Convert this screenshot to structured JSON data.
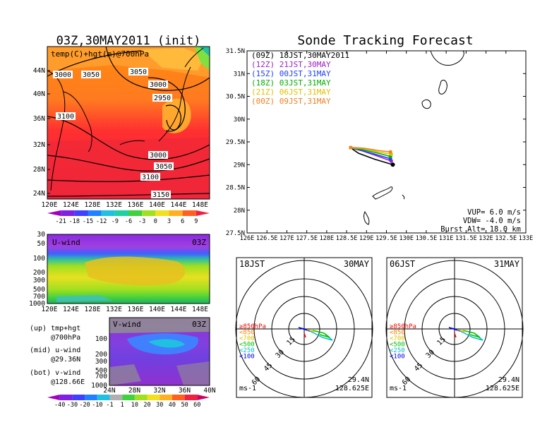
{
  "left": {
    "title": "03Z,30MAY2011 (init)",
    "map_label": "temp(C)+hgt(m)@700hPa",
    "map_lat_ticks": [
      "44N",
      "40N",
      "36N",
      "32N",
      "28N",
      "24N"
    ],
    "map_lon_ticks": [
      "120E",
      "124E",
      "128E",
      "132E",
      "136E",
      "140E",
      "144E",
      "148E"
    ],
    "contour_labels": [
      "3000",
      "3050",
      "3050",
      "3000",
      "2950",
      "3100",
      "3000",
      "3050",
      "3100",
      "3150"
    ],
    "temp_colorbar": [
      "-21",
      "-18",
      "-15",
      "-12",
      "-9",
      "-6",
      "-3",
      "0",
      "3",
      "6",
      "9"
    ],
    "u_label": "U-wind",
    "u_time": "03Z",
    "u_levels": [
      "30",
      "50",
      "100",
      "200",
      "300",
      "500",
      "700",
      "1000"
    ],
    "u_lon_ticks": [
      "120E",
      "124E",
      "128E",
      "132E",
      "136E",
      "140E",
      "144E",
      "148E"
    ],
    "v_label": "V-wind",
    "v_time": "03Z",
    "v_levels": [
      "100",
      "200",
      "300",
      "500",
      "700",
      "1000"
    ],
    "v_lat_ticks": [
      "24N",
      "28N",
      "32N",
      "36N",
      "40N"
    ],
    "notes": [
      "(up) tmp+hgt",
      "@700hPa",
      "(mid) u-wind",
      "@29.36N",
      "(bot) v-wind",
      "@128.66E"
    ],
    "wind_colorbar": [
      "-40",
      "-30",
      "-20",
      "-10",
      "-1",
      "1",
      "10",
      "20",
      "30",
      "40",
      "50",
      "60"
    ]
  },
  "track": {
    "title": "Sonde Tracking Forecast",
    "lat_ticks": [
      "31.5N",
      "31N",
      "30.5N",
      "30N",
      "29.5N",
      "29N",
      "28.5N",
      "28N",
      "27.5N"
    ],
    "lon_ticks": [
      "126E",
      "126.5E",
      "127E",
      "127.5E",
      "128E",
      "128.5E",
      "129E",
      "129.5E",
      "130E",
      "130.5E",
      "131E",
      "131.5E",
      "132E",
      "132.5E",
      "133E"
    ],
    "legend": [
      {
        "text": "(09Z)  18JST,30MAY2011",
        "color": "#000000"
      },
      {
        "text": "(12Z)  21JST,30MAY",
        "color": "#a020c0"
      },
      {
        "text": "(15Z)  00JST,31MAY",
        "color": "#2040ff"
      },
      {
        "text": "(18Z)  03JST,31MAY",
        "color": "#00b000"
      },
      {
        "text": "(21Z)  06JST,31MAY",
        "color": "#e0c000"
      },
      {
        "text": "(00Z)  09JST,31MAY",
        "color": "#f08020"
      }
    ],
    "params": [
      "VUP=  6.0  m/s",
      "VDW= -4.0  m/s",
      "Burst Alt=  18.0  km"
    ]
  },
  "hodo1": {
    "left": "18JST",
    "right": "30MAY",
    "lat": "29.4N",
    "lon": "128.625E",
    "unit": "ms-1"
  },
  "hodo2": {
    "left": "06JST",
    "right": "31MAY",
    "lat": "29.4N",
    "lon": "128.625E",
    "unit": "ms-1"
  },
  "hodo_rings": [
    "15",
    "30",
    "45",
    "60"
  ],
  "hodo_levels": [
    {
      "text": "≥850hPa",
      "color": "#ff0000"
    },
    {
      "text": "<850",
      "color": "#ff8000"
    },
    {
      "text": "<700",
      "color": "#e0c000"
    },
    {
      "text": "<500",
      "color": "#00c000"
    },
    {
      "text": "<250",
      "color": "#00c0c0"
    },
    {
      "text": "<100",
      "color": "#0000ff"
    }
  ],
  "chart_data": {
    "type": "line",
    "title": "Sonde Tracking Forecast",
    "xlabel": "",
    "ylabel": "",
    "xlim": [
      126,
      133
    ],
    "ylim": [
      27.5,
      31.5
    ],
    "launch": {
      "lon": 129.66,
      "lat": 29.0
    },
    "series": [
      {
        "color": "#000000",
        "x": [
          129.66,
          129.2,
          128.8,
          128.6
        ],
        "y": [
          29.0,
          29.12,
          29.25,
          29.37
        ]
      },
      {
        "color": "#a020c0",
        "x": [
          129.62,
          129.3,
          128.9,
          128.6
        ],
        "y": [
          29.08,
          29.18,
          29.3,
          29.37
        ]
      },
      {
        "color": "#2040ff",
        "x": [
          129.6,
          129.25,
          128.85,
          128.6
        ],
        "y": [
          29.13,
          29.22,
          29.32,
          29.37
        ]
      },
      {
        "color": "#00b000",
        "x": [
          129.6,
          129.3,
          128.9,
          128.6
        ],
        "y": [
          29.18,
          29.25,
          29.33,
          29.37
        ]
      },
      {
        "color": "#e0c000",
        "x": [
          129.62,
          129.3,
          128.95,
          128.6
        ],
        "y": [
          29.23,
          29.28,
          29.35,
          29.37
        ]
      },
      {
        "color": "#f08020",
        "x": [
          129.6,
          129.3,
          128.95,
          128.6
        ],
        "y": [
          29.28,
          29.31,
          29.36,
          29.38
        ]
      }
    ]
  }
}
